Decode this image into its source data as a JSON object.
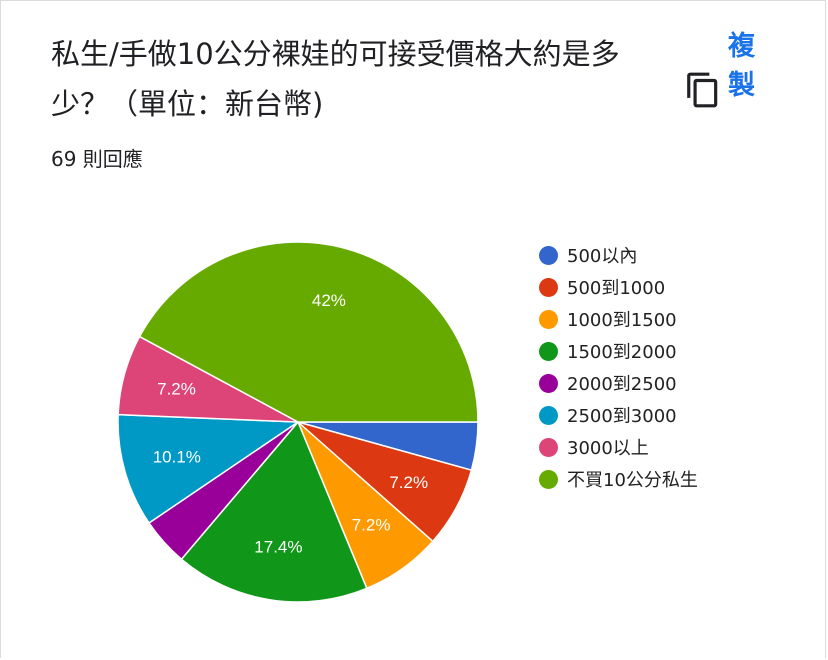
{
  "header": {
    "title": "私生/手做10公分裸娃的可接受價格大約是多少？（單位：新台幣)",
    "response_count": "69 則回應",
    "copy_label": "複製",
    "copy_icon": "copy-icon"
  },
  "chart_data": {
    "type": "pie",
    "categories": [
      "500以內",
      "500到1000",
      "1000到1500",
      "1500到2000",
      "2000到2500",
      "2500到3000",
      "3000以上",
      "不買10公分私生"
    ],
    "values": [
      4.3,
      7.2,
      7.2,
      17.4,
      4.3,
      10.1,
      7.2,
      42.0
    ],
    "data_labels": [
      "",
      "7.2%",
      "7.2%",
      "17.4%",
      "",
      "10.1%",
      "7.2%",
      "42%"
    ],
    "colors": [
      "#3366cc",
      "#dc3912",
      "#ff9900",
      "#109618",
      "#990099",
      "#0099c6",
      "#dd4477",
      "#66aa00"
    ],
    "legend_position": "right",
    "start": "east, clockwise"
  }
}
